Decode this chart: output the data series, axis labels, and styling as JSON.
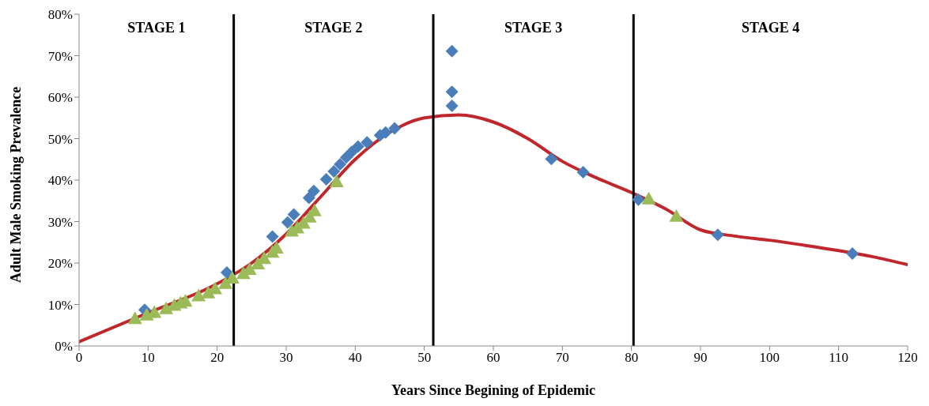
{
  "chart_data": {
    "type": "scatter",
    "xlabel": "Years Since Begining of Epidemic",
    "ylabel": "Adult Male Smoking Prevalence",
    "xlim": [
      0,
      120
    ],
    "xticks": [
      0,
      10,
      20,
      30,
      40,
      50,
      60,
      70,
      80,
      90,
      100,
      110,
      120
    ],
    "ylim": [
      0,
      80
    ],
    "yticks": [
      {
        "value": 0,
        "label": "0%"
      },
      {
        "value": 10,
        "label": "10%"
      },
      {
        "value": 20,
        "label": "20%"
      },
      {
        "value": 30,
        "label": "30%"
      },
      {
        "value": 40,
        "label": "40%"
      },
      {
        "value": 50,
        "label": "50%"
      },
      {
        "value": 60,
        "label": "60%"
      },
      {
        "value": 70,
        "label": "70%"
      },
      {
        "value": 80,
        "label": "80%"
      }
    ],
    "grid": false,
    "legend": false,
    "series": [
      {
        "marker": "diamond",
        "color": "#4a7ebb",
        "x": [
          9.5,
          21.4,
          28,
          30.2,
          31.1,
          33.3,
          34,
          35.8,
          36.9,
          37.8,
          38.7,
          39.5,
          40.4,
          41.7,
          43.6,
          44.4,
          45.7,
          54,
          54,
          54,
          68.4,
          73,
          81,
          92.5,
          112
        ],
        "values": [
          8.7,
          17.7,
          26.4,
          29.8,
          31.7,
          35.7,
          37.4,
          40.2,
          42.1,
          43.8,
          45.5,
          46.8,
          48.1,
          49.1,
          50.8,
          51.5,
          52.5,
          71.1,
          61.3,
          57.9,
          45.1,
          41.9,
          35.3,
          26.8,
          22.3
        ]
      },
      {
        "marker": "triangle",
        "color": "#9bbb59",
        "x": [
          8.1,
          9.8,
          10.9,
          12.6,
          13.8,
          14.7,
          15.4,
          17.3,
          18.7,
          19.7,
          21.2,
          22.2,
          23.8,
          24.7,
          25.9,
          26.8,
          28,
          28.6,
          30.8,
          31.6,
          32.5,
          33.4,
          34.1,
          37.3,
          82.5,
          86.5
        ],
        "values": [
          6.6,
          7.5,
          8.1,
          9,
          9.8,
          10.4,
          10.8,
          12.1,
          12.8,
          13.8,
          15.1,
          16.4,
          17.5,
          18.5,
          19.8,
          21.1,
          22.6,
          23.6,
          27.7,
          28.5,
          29.6,
          31.1,
          32.6,
          39.6,
          35.5,
          31.3
        ]
      },
      {
        "type": "line",
        "marker": "none",
        "color": "#c0272d",
        "x": [
          0,
          10,
          20,
          25,
          30,
          35,
          40,
          45,
          50,
          55,
          60,
          65,
          70,
          75,
          80,
          85,
          90,
          95,
          100,
          105,
          110,
          115,
          120
        ],
        "values": [
          1,
          8,
          15,
          20,
          27,
          36,
          45,
          51.5,
          55,
          55.7,
          54,
          50,
          44.5,
          40.5,
          37,
          33,
          28,
          26.5,
          25.5,
          24.3,
          23,
          21.5,
          19.6
        ]
      }
    ],
    "ref_lines": [
      {
        "axis": "x",
        "value": 22.4,
        "color": "#000000"
      },
      {
        "axis": "x",
        "value": 51.3,
        "color": "#000000"
      },
      {
        "axis": "x",
        "value": 80.3,
        "color": "#000000"
      }
    ],
    "annotations": [
      "STAGE 1",
      "STAGE 2",
      "STAGE 3",
      "STAGE 4"
    ]
  }
}
